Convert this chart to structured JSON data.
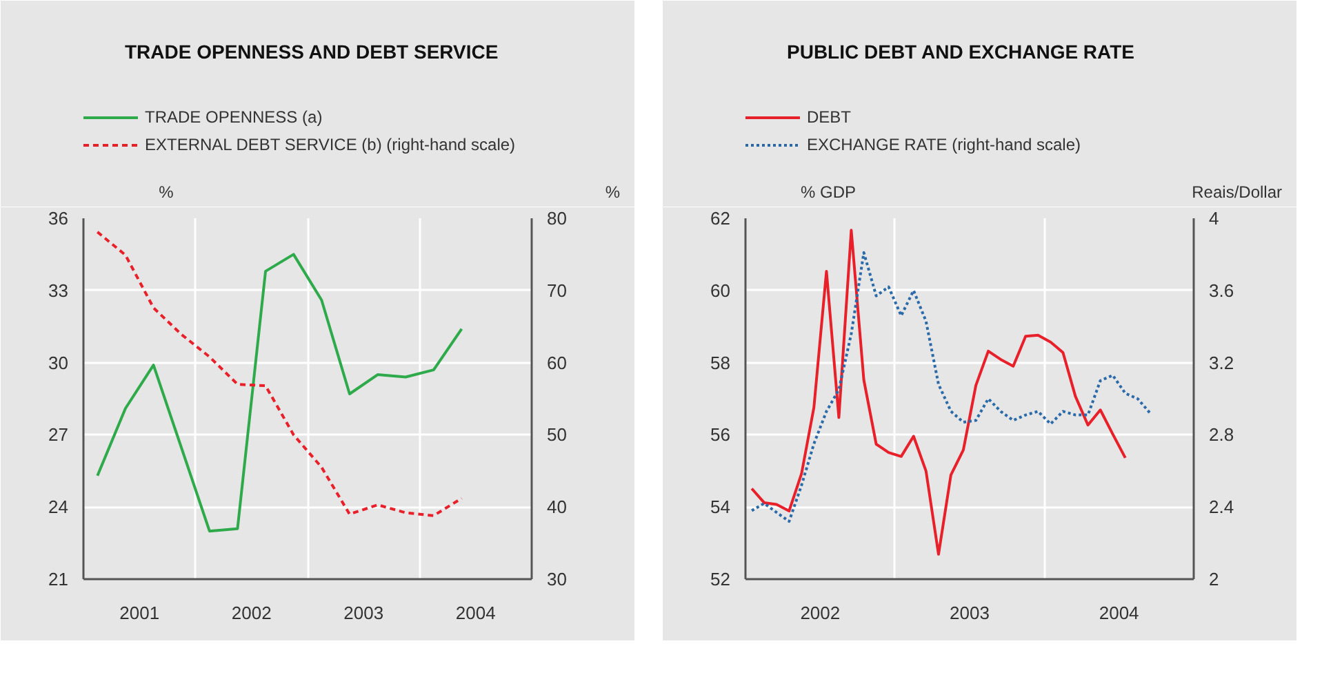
{
  "chart_data": [
    {
      "type": "line",
      "title": "TRADE OPENNESS AND DEBT SERVICE",
      "ylabel": "%",
      "y2label": "%",
      "legend": "top",
      "grid": true,
      "xlim": [
        2001,
        2005
      ],
      "xticks": [
        {
          "value": 2001.5,
          "label": "2001"
        },
        {
          "value": 2002.5,
          "label": "2002"
        },
        {
          "value": 2003.5,
          "label": "2003"
        },
        {
          "value": 2004.5,
          "label": "2004"
        },
        {
          "value": 2002,
          "label": null
        },
        {
          "value": 2003,
          "label": null
        },
        {
          "value": 2004,
          "label": null
        }
      ],
      "ylim": [
        21,
        36
      ],
      "yticks": [
        21,
        24,
        27,
        30,
        33,
        36
      ],
      "y2lim": [
        30,
        80
      ],
      "y2ticks": [
        30,
        40,
        50,
        60,
        70,
        80
      ],
      "series": [
        {
          "name": "TRADE OPENNESS (a)",
          "color": "#2eaa4a",
          "line_style": "solid",
          "x": [
            2001.125,
            2001.375,
            2001.625,
            2002.125,
            2002.375,
            2002.625,
            2002.875,
            2003.125,
            2003.375,
            2003.625,
            2003.875,
            2004.125,
            2004.375
          ],
          "values": [
            25.3,
            28.1,
            29.9,
            23.0,
            23.1,
            33.8,
            34.5,
            32.6,
            28.7,
            29.5,
            29.4,
            29.7,
            31.4
          ]
        },
        {
          "name": "EXTERNAL DEBT SERVICE (b) (right-hand scale)",
          "color": "#e8202a",
          "line_style": "dashed",
          "axis": "y2",
          "x": [
            2001.125,
            2001.375,
            2001.625,
            2001.875,
            2002.125,
            2002.375,
            2002.625,
            2002.875,
            2003.125,
            2003.375,
            2003.625,
            2003.875,
            2004.125,
            2004.375
          ],
          "values": [
            78.1,
            74.9,
            67.6,
            63.9,
            60.8,
            57.0,
            56.8,
            50.0,
            45.5,
            39.0,
            40.3,
            39.2,
            38.8,
            41.2
          ]
        }
      ]
    },
    {
      "type": "line",
      "title": "PUBLIC DEBT AND EXCHANGE RATE",
      "ylabel": "% GDP",
      "y2label": "Reais/Dollar",
      "legend": "top",
      "grid": true,
      "xlim": [
        2002,
        2005
      ],
      "xticks": [
        {
          "value": 2002.5,
          "label": "2002"
        },
        {
          "value": 2003.5,
          "label": "2003"
        },
        {
          "value": 2004.5,
          "label": "2004"
        },
        {
          "value": 2003,
          "label": null
        },
        {
          "value": 2004,
          "label": null
        }
      ],
      "ylim": [
        52,
        62
      ],
      "yticks": [
        52,
        54,
        56,
        58,
        60,
        62
      ],
      "y2lim": [
        2,
        4
      ],
      "y2ticks": [
        2,
        2.4,
        2.8,
        3.2,
        3.6,
        4
      ],
      "series": [
        {
          "name": "DEBT",
          "color": "#e8202a",
          "line_style": "solid",
          "x": [
            2002.042,
            2002.125,
            2002.208,
            2002.292,
            2002.375,
            2002.458,
            2002.542,
            2002.625,
            2002.708,
            2002.792,
            2002.875,
            2002.958,
            2003.042,
            2003.125,
            2003.208,
            2003.292,
            2003.375,
            2003.458,
            2003.542,
            2003.625,
            2003.708,
            2003.792,
            2003.875,
            2003.958,
            2004.042,
            2004.125,
            2004.208,
            2004.292,
            2004.375,
            2004.458,
            2004.542
          ],
          "values": [
            54.51,
            54.12,
            54.07,
            53.89,
            54.92,
            56.76,
            60.53,
            56.48,
            61.67,
            57.52,
            55.74,
            55.51,
            55.4,
            55.96,
            55.0,
            52.69,
            54.89,
            55.58,
            57.37,
            58.32,
            58.09,
            57.9,
            58.73,
            58.76,
            58.57,
            58.28,
            57.07,
            56.27,
            56.69,
            56.02,
            55.36
          ]
        },
        {
          "name": "EXCHANGE RATE (right-hand scale)",
          "color": "#2b6aa9",
          "line_style": "dotted",
          "axis": "y2",
          "x": [
            2002.042,
            2002.125,
            2002.208,
            2002.292,
            2002.375,
            2002.458,
            2002.542,
            2002.625,
            2002.708,
            2002.792,
            2002.875,
            2002.958,
            2003.042,
            2003.125,
            2003.208,
            2003.292,
            2003.375,
            2003.458,
            2003.542,
            2003.625,
            2003.708,
            2003.792,
            2003.875,
            2003.958,
            2004.042,
            2004.125,
            2004.208,
            2004.292,
            2004.375,
            2004.458,
            2004.542,
            2004.625,
            2004.708
          ],
          "values": [
            2.38,
            2.42,
            2.37,
            2.32,
            2.52,
            2.75,
            2.93,
            3.05,
            3.36,
            3.81,
            3.57,
            3.62,
            3.46,
            3.6,
            3.43,
            3.08,
            2.93,
            2.87,
            2.88,
            3.0,
            2.93,
            2.88,
            2.91,
            2.93,
            2.86,
            2.93,
            2.91,
            2.91,
            3.1,
            3.13,
            3.03,
            3.0,
            2.92
          ]
        }
      ]
    }
  ]
}
